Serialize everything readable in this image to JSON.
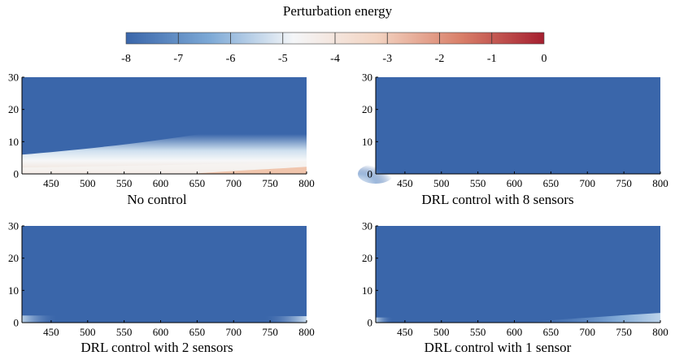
{
  "colorbar": {
    "title": "Perturbation energy",
    "ticks": [
      "-8",
      "-7",
      "-6",
      "-5",
      "-4",
      "-3",
      "-2",
      "-1",
      "0"
    ],
    "range": [
      -8,
      0
    ],
    "colors": [
      "#3a66aa",
      "#7da9d6",
      "#f4f6f8",
      "#f3d4c2",
      "#d9806a",
      "#a52030"
    ]
  },
  "chart_data": [
    {
      "type": "heatmap",
      "title": "No control",
      "xlim": [
        410,
        800
      ],
      "ylim": [
        0,
        30
      ],
      "xticks": [
        "450",
        "500",
        "550",
        "600",
        "650",
        "700",
        "750",
        "800"
      ],
      "yticks": [
        "0",
        "10",
        "20",
        "30"
      ],
      "xlabel": "",
      "ylabel": "",
      "colorbar_label": "Perturbation energy",
      "description_values": {
        "max_energy_near_wall": -3.5,
        "background": -8
      }
    },
    {
      "type": "heatmap",
      "title": "DRL control with 8 sensors",
      "xlim": [
        410,
        800
      ],
      "ylim": [
        0,
        30
      ],
      "xticks": [
        "450",
        "500",
        "550",
        "600",
        "650",
        "700",
        "750",
        "800"
      ],
      "yticks": [
        "0",
        "10",
        "20",
        "30"
      ],
      "xlabel": "",
      "ylabel": "",
      "description_values": {
        "max_energy_near_wall": -7.3,
        "background": -8
      }
    },
    {
      "type": "heatmap",
      "title": "DRL control with 2 sensors",
      "xlim": [
        410,
        800
      ],
      "ylim": [
        0,
        30
      ],
      "xticks": [
        "450",
        "500",
        "550",
        "600",
        "650",
        "700",
        "750",
        "800"
      ],
      "yticks": [
        "0",
        "10",
        "20",
        "30"
      ],
      "xlabel": "",
      "ylabel": "",
      "description_values": {
        "max_energy_near_wall": -7.0,
        "background": -8
      }
    },
    {
      "type": "heatmap",
      "title": "DRL control with 1 sensor",
      "xlim": [
        410,
        800
      ],
      "ylim": [
        0,
        30
      ],
      "xticks": [
        "450",
        "500",
        "550",
        "600",
        "650",
        "700",
        "750",
        "800"
      ],
      "yticks": [
        "0",
        "10",
        "20",
        "30"
      ],
      "xlabel": "",
      "ylabel": "",
      "description_values": {
        "max_energy_near_wall": -6.8,
        "background": -8
      }
    }
  ]
}
